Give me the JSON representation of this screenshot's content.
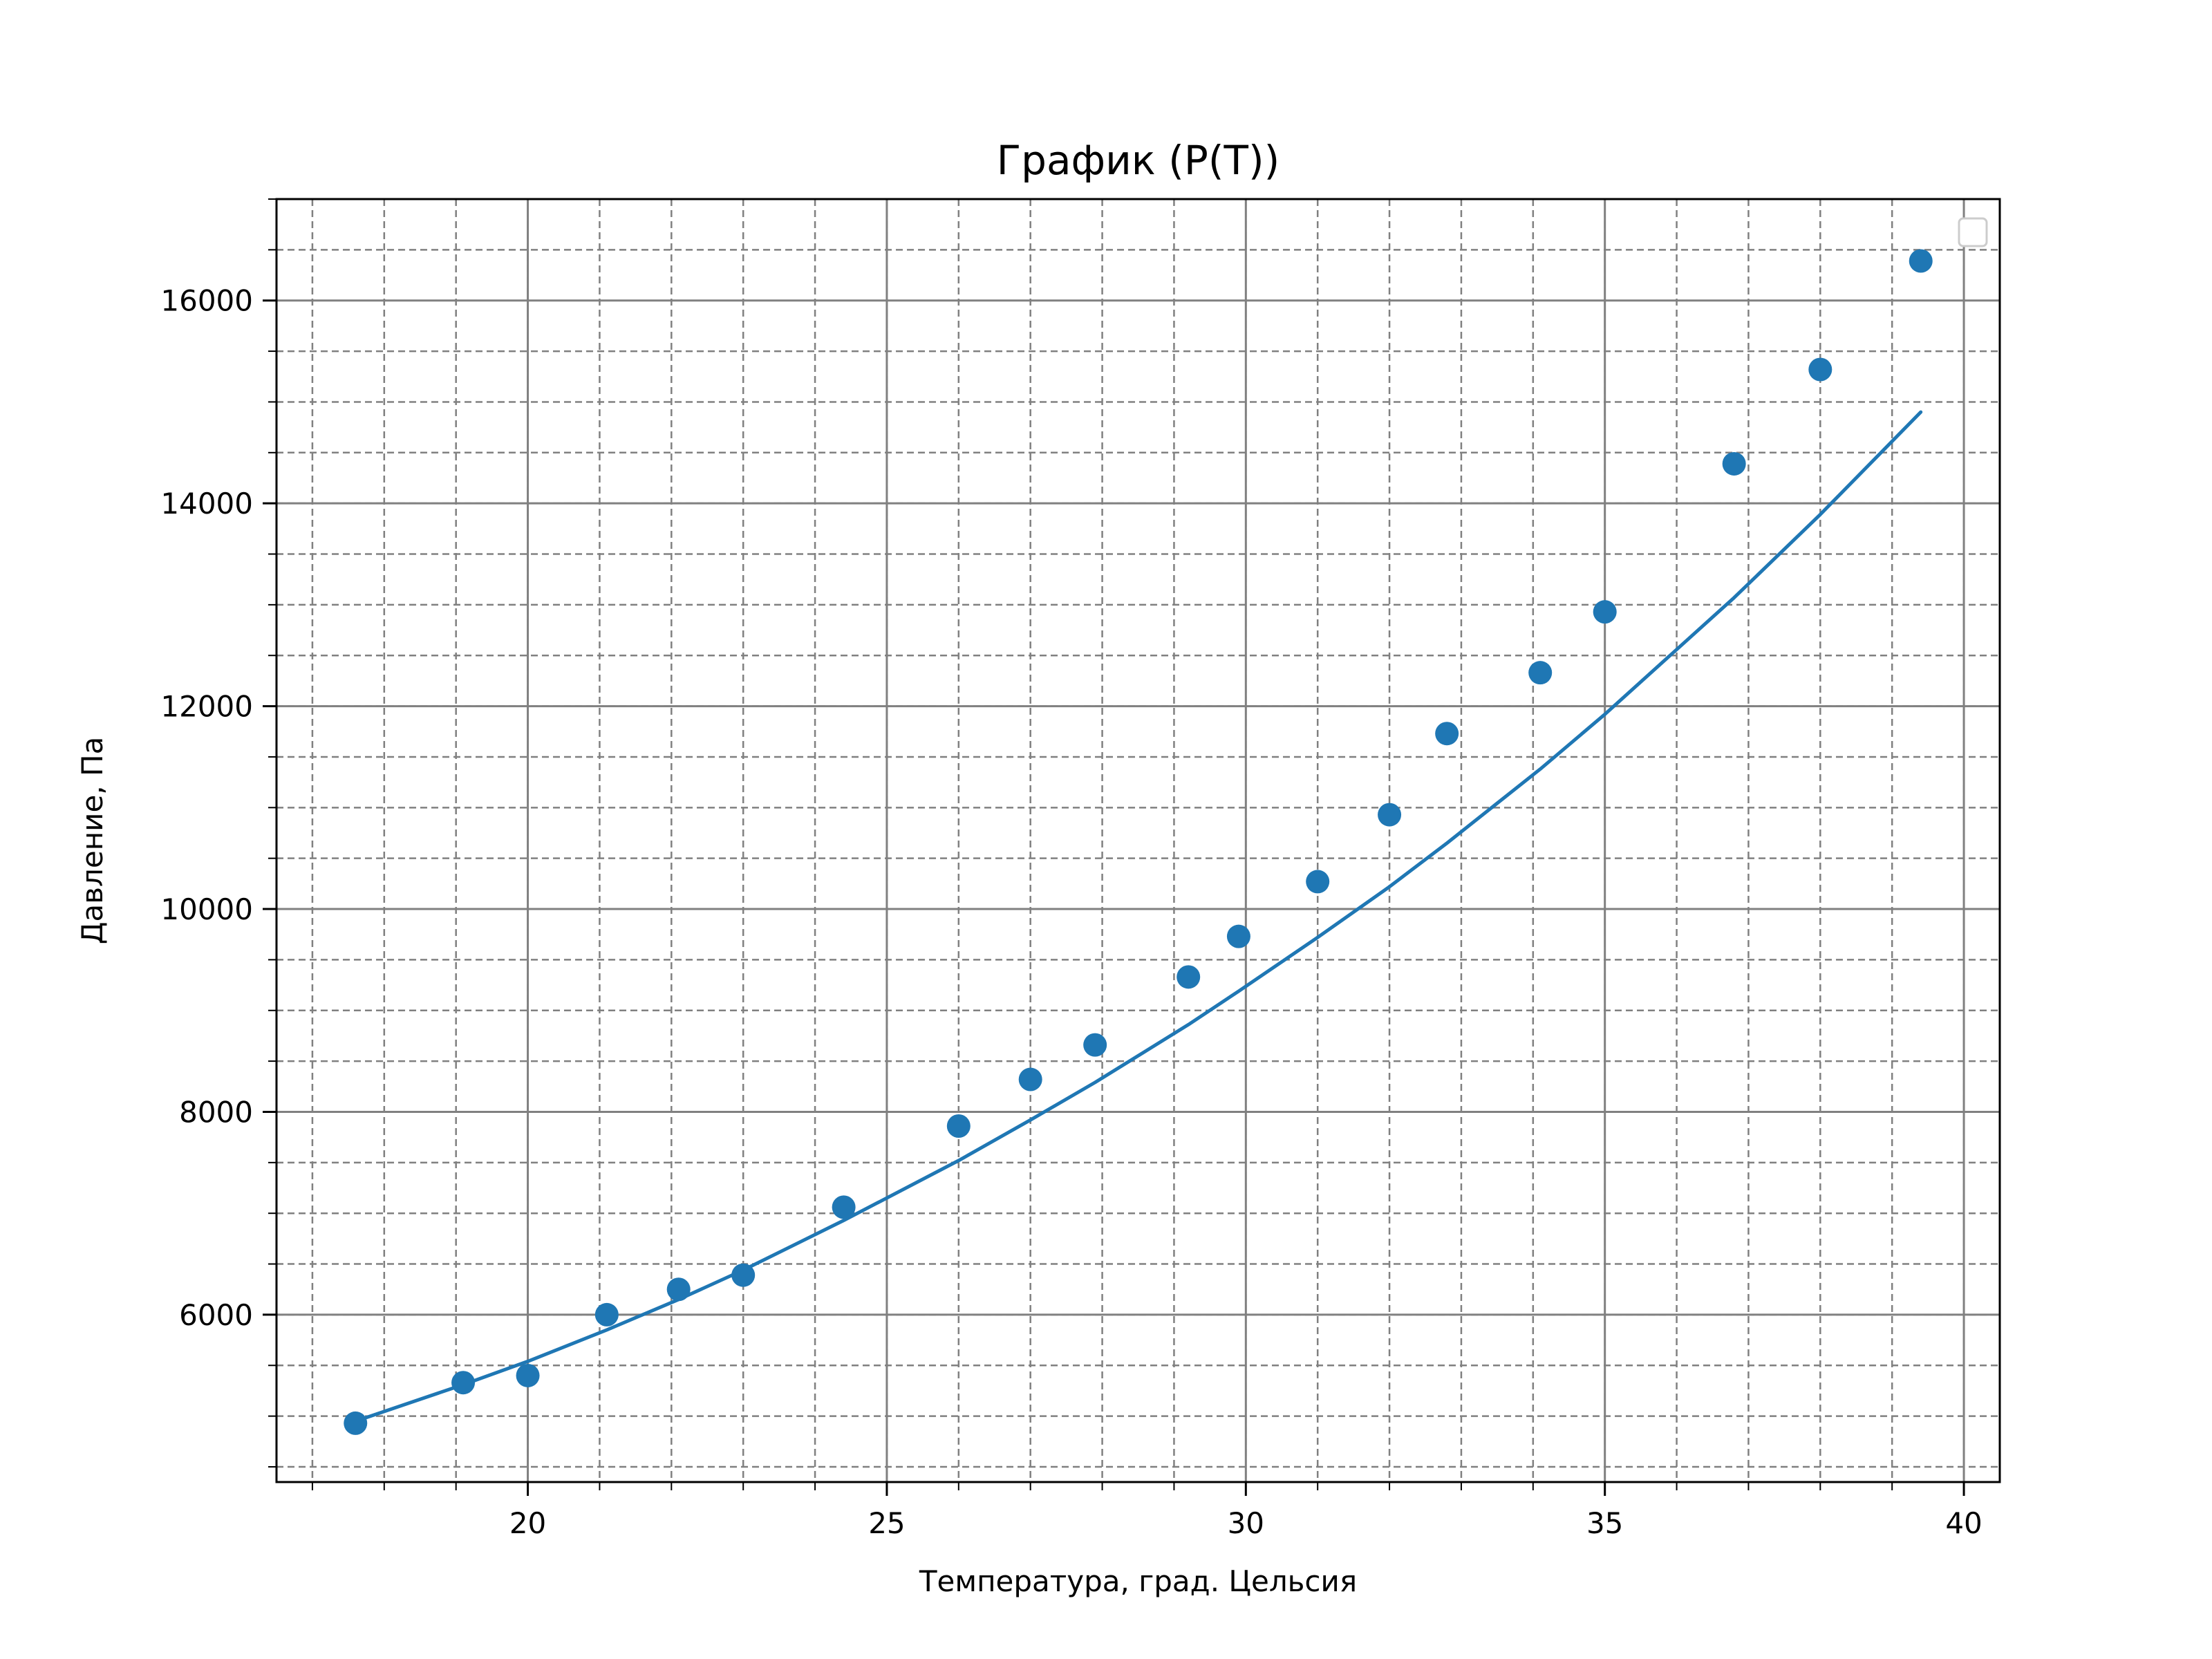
{
  "chart_data": {
    "type": "scatter",
    "title": "График (P(T))",
    "xlabel": "Температура, град. Цельсия",
    "ylabel": "Давление, Па",
    "xlim": [
      16.5,
      40.5
    ],
    "ylim": [
      4350,
      17000
    ],
    "xticks": [
      20,
      25,
      30,
      35,
      40
    ],
    "yticks": [
      6000,
      8000,
      10000,
      12000,
      14000,
      16000
    ],
    "x_minor_step": 1,
    "y_minor_step": 500,
    "grid": true,
    "legend": "top-right (empty)",
    "colors": {
      "series": "#1f77b4",
      "grid_major": "#808080",
      "grid_minor": "#808080",
      "axes": "#000000",
      "legend_border": "#cccccc"
    },
    "series": [
      {
        "kind": "points",
        "x": [
          17.6,
          19.1,
          20.0,
          21.1,
          22.1,
          23.0,
          24.4,
          26.0,
          27.0,
          27.9,
          29.2,
          29.9,
          31.0,
          32.0,
          32.8,
          34.1,
          35.0,
          36.8,
          38.0,
          39.4
        ],
        "y": [
          4930,
          5330,
          5400,
          6000,
          6250,
          6390,
          7060,
          7860,
          8320,
          8660,
          9330,
          9730,
          10270,
          10930,
          11730,
          12330,
          12930,
          14390,
          15320,
          16390
        ]
      },
      {
        "kind": "fit-line",
        "x": [
          17.6,
          19.1,
          20.0,
          21.1,
          22.1,
          23.0,
          24.4,
          26.0,
          27.0,
          27.9,
          29.2,
          29.9,
          31.0,
          32.0,
          32.8,
          34.1,
          35.0,
          36.8,
          38.0,
          39.4
        ],
        "y": [
          4950,
          5310,
          5540,
          5850,
          6150,
          6440,
          6930,
          7520,
          7920,
          8290,
          8860,
          9190,
          9720,
          10220,
          10650,
          11380,
          11920,
          13070,
          13890,
          14900
        ]
      }
    ]
  }
}
